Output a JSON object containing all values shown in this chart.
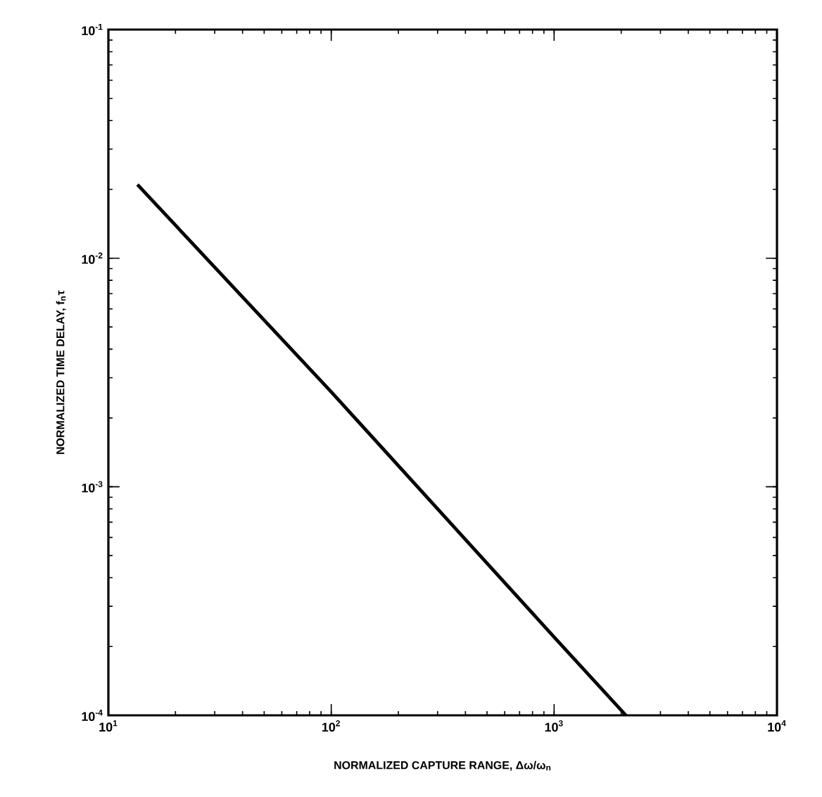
{
  "chart_data": {
    "type": "line",
    "log": "xy",
    "xlabel": "NORMALIZED CAPTURE RANGE,  Δω/ω$_{n}$",
    "ylabel": "NORMALIZED TIME DELAY, f$_{n}$τ",
    "x": [
      13.5,
      100,
      1000,
      2100
    ],
    "series": [
      {
        "color": "#000000",
        "values": [
          0.021,
          0.0026,
          0.00022,
          0.0001
        ]
      }
    ],
    "xlim": [
      10,
      10000
    ],
    "ylim": [
      0.0001,
      0.1
    ],
    "xticks": [
      {
        "value": 10,
        "label": "10$^{1}$"
      },
      {
        "value": 100,
        "label": "10$^{2}$"
      },
      {
        "value": 1000,
        "label": "10$^{3}$"
      },
      {
        "value": 10000,
        "label": "10$^{4}$"
      }
    ],
    "yticks": [
      {
        "value": 0.0001,
        "label": "10$^{-4}$"
      },
      {
        "value": 0.001,
        "label": "10$^{-3}$"
      },
      {
        "value": 0.01,
        "label": "10$^{-2}$"
      },
      {
        "value": 0.1,
        "label": "10$^{-1}$"
      }
    ],
    "marker": "none",
    "line_style": "solid"
  }
}
